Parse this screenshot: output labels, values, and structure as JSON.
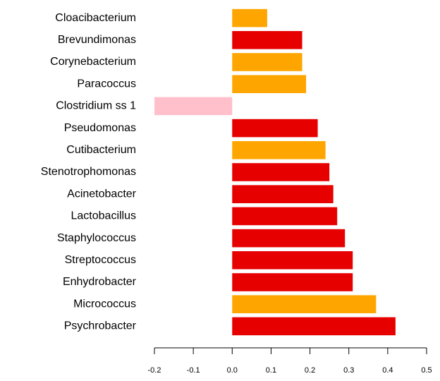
{
  "chart_data": {
    "type": "barh",
    "categories": [
      "Cloacibacterium",
      "Brevundimonas",
      "Corynebacterium",
      "Paracoccus",
      "Clostridium ss 1",
      "Pseudomonas",
      "Cutibacterium",
      "Stenotrophomonas",
      "Acinetobacter",
      "Lactobacillus",
      "Staphylococcus",
      "Streptococcus",
      "Enhydrobacter",
      "Micrococcus",
      "Psychrobacter"
    ],
    "values": [
      0.09,
      0.18,
      0.18,
      0.19,
      -0.2,
      0.22,
      0.24,
      0.25,
      0.26,
      0.27,
      0.29,
      0.31,
      0.31,
      0.37,
      0.42
    ],
    "colors": [
      "#ffa500",
      "#e60000",
      "#ffa500",
      "#ffa500",
      "#ffc0cb",
      "#e60000",
      "#ffa500",
      "#e60000",
      "#e60000",
      "#e60000",
      "#e60000",
      "#e60000",
      "#e60000",
      "#ffa500",
      "#e60000"
    ],
    "xlim": [
      -0.2,
      0.5
    ],
    "xticks": [
      -0.2,
      -0.1,
      {
        "value": 0,
        "label": "0.0"
      },
      0.1,
      0.2,
      0.3,
      0.4,
      0.5
    ]
  }
}
